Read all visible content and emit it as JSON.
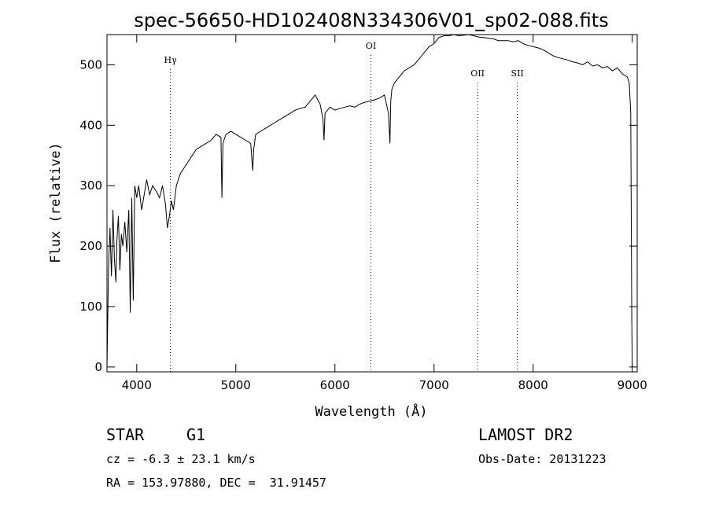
{
  "chart_data": {
    "type": "line",
    "title": "spec-56650-HD102408N334306V01_sp02-088.fits",
    "xlabel": "Wavelength (Å)",
    "ylabel": "Flux (relative)",
    "xlim": [
      3700,
      9050
    ],
    "ylim": [
      -8,
      550
    ],
    "x_ticks": [
      4000,
      5000,
      6000,
      7000,
      8000,
      9000
    ],
    "y_ticks": [
      0,
      100,
      200,
      300,
      400,
      500
    ],
    "spectral_lines": [
      {
        "name": "Hγ",
        "wavelength": 4340
      },
      {
        "name": "OI",
        "wavelength": 6363
      },
      {
        "name": "OII",
        "wavelength": 7440
      },
      {
        "name": "SII",
        "wavelength": 7840
      }
    ],
    "series": [
      {
        "x": [
          3700,
          3715,
          3730,
          3745,
          3760,
          3775,
          3790,
          3800,
          3815,
          3830,
          3845,
          3860,
          3880,
          3900,
          3920,
          3935,
          3950,
          3965,
          3980,
          4000,
          4020,
          4050,
          4080,
          4100,
          4130,
          4160,
          4200,
          4230,
          4260,
          4290,
          4310,
          4330,
          4350,
          4370,
          4400,
          4440,
          4480,
          4520,
          4560,
          4600,
          4650,
          4700,
          4750,
          4800,
          4850,
          4860,
          4870,
          4900,
          4950,
          5000,
          5050,
          5100,
          5150,
          5170,
          5180,
          5200,
          5250,
          5300,
          5350,
          5400,
          5450,
          5500,
          5550,
          5600,
          5650,
          5700,
          5750,
          5800,
          5850,
          5880,
          5890,
          5900,
          5950,
          6000,
          6050,
          6100,
          6150,
          6200,
          6250,
          6300,
          6350,
          6400,
          6450,
          6500,
          6540,
          6555,
          6563,
          6575,
          6600,
          6650,
          6700,
          6750,
          6800,
          6850,
          6900,
          6950,
          7000,
          7050,
          7100,
          7150,
          7200,
          7250,
          7300,
          7350,
          7400,
          7450,
          7500,
          7550,
          7600,
          7650,
          7700,
          7750,
          7800,
          7850,
          7900,
          7950,
          8000,
          8050,
          8100,
          8150,
          8200,
          8250,
          8300,
          8350,
          8400,
          8450,
          8500,
          8550,
          8600,
          8650,
          8700,
          8750,
          8800,
          8850,
          8900,
          8950,
          8970,
          8985,
          8995,
          9000
        ],
        "y": [
          0,
          160,
          230,
          150,
          260,
          180,
          140,
          210,
          250,
          160,
          220,
          200,
          240,
          190,
          260,
          90,
          280,
          110,
          300,
          280,
          300,
          260,
          290,
          310,
          285,
          300,
          290,
          280,
          300,
          270,
          230,
          250,
          275,
          260,
          300,
          320,
          330,
          340,
          350,
          360,
          365,
          370,
          375,
          385,
          380,
          280,
          370,
          385,
          390,
          385,
          380,
          375,
          370,
          325,
          360,
          385,
          390,
          395,
          400,
          405,
          410,
          415,
          420,
          425,
          428,
          430,
          440,
          450,
          435,
          410,
          375,
          420,
          430,
          425,
          428,
          430,
          432,
          430,
          435,
          438,
          440,
          442,
          445,
          450,
          420,
          370,
          440,
          460,
          470,
          480,
          490,
          495,
          500,
          510,
          520,
          530,
          535,
          545,
          548,
          548,
          550,
          548,
          549,
          550,
          548,
          546,
          545,
          544,
          543,
          540,
          540,
          540,
          538,
          540,
          535,
          532,
          530,
          528,
          525,
          520,
          515,
          512,
          510,
          508,
          505,
          503,
          500,
          505,
          498,
          500,
          495,
          497,
          490,
          495,
          485,
          480,
          470,
          420,
          80,
          0
        ]
      }
    ]
  },
  "info": {
    "object_class": "STAR",
    "subclass": "G1",
    "survey": "LAMOST DR2",
    "redshift_text": "cz = -6.3 ± 23.1 km/s",
    "obs_date_text": "Obs-Date: 20131223",
    "coords_text": "RA = 153.97880, DEC =  31.91457"
  }
}
